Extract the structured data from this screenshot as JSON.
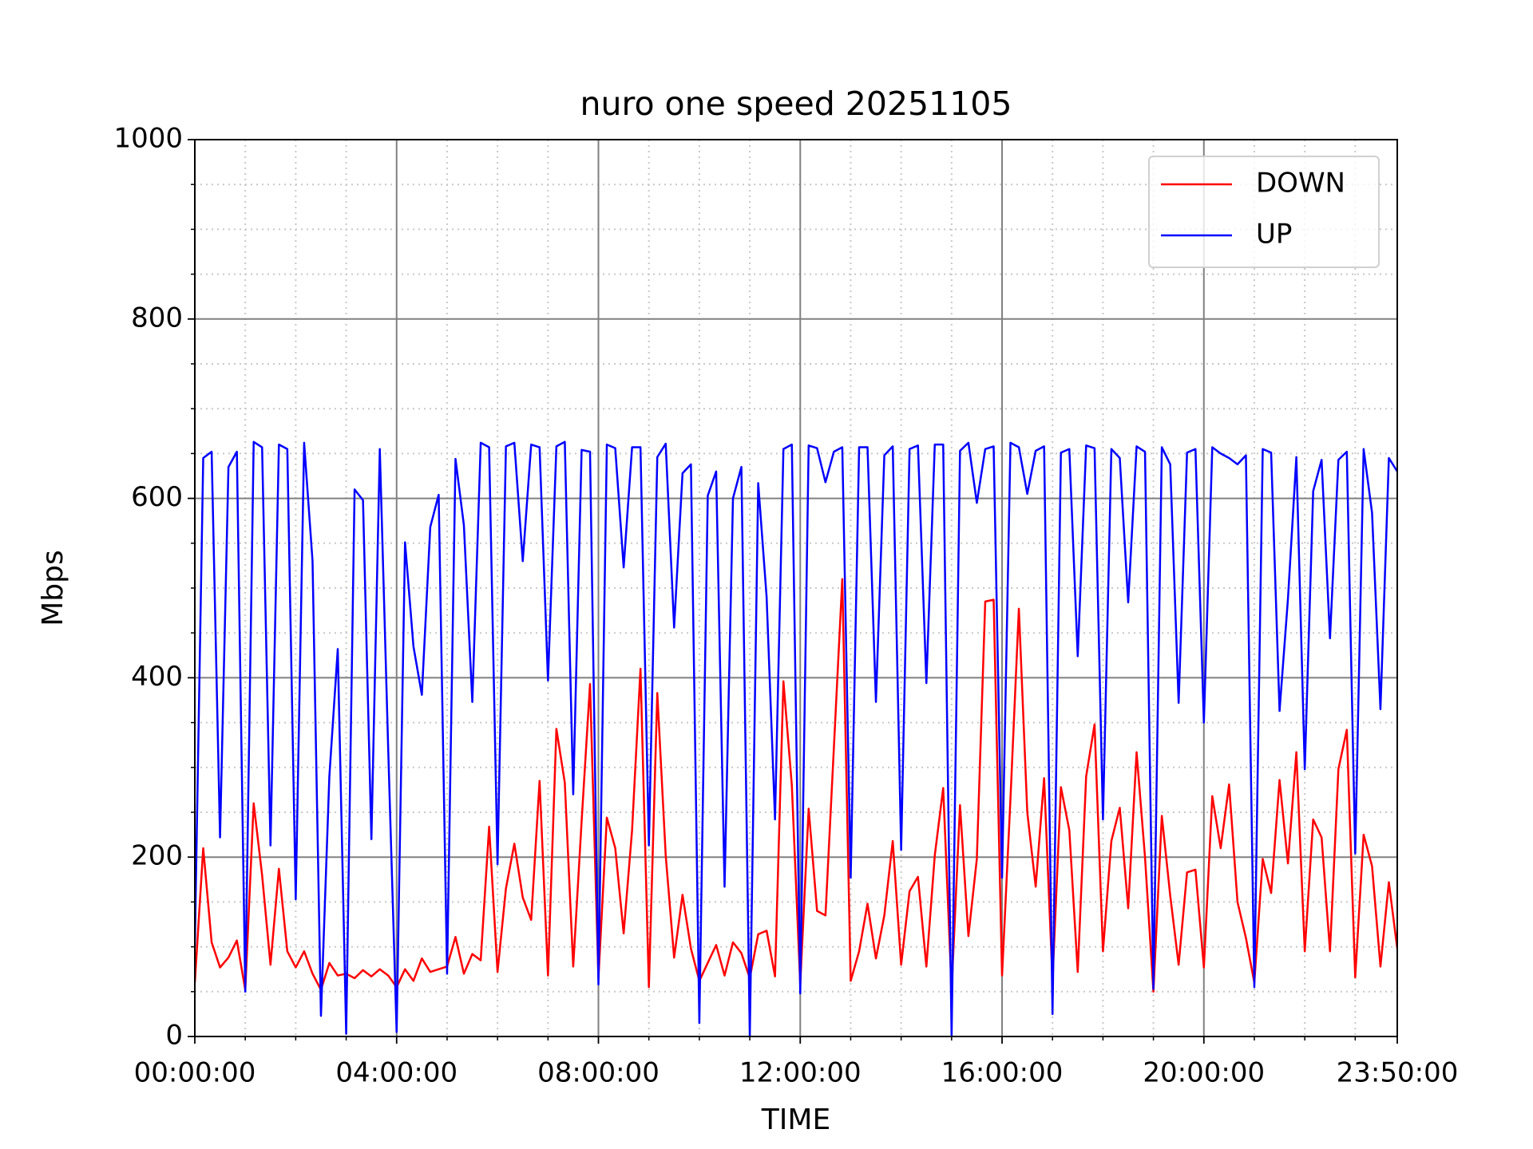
{
  "chart_data": {
    "type": "line",
    "title": "nuro one speed 20251105",
    "x_label": "TIME",
    "y_label": "Mbps",
    "x": [
      0,
      10,
      20,
      30,
      40,
      50,
      60,
      70,
      80,
      90,
      100,
      110,
      120,
      130,
      140,
      150,
      160,
      170,
      180,
      190,
      200,
      210,
      220,
      230,
      240,
      250,
      260,
      270,
      280,
      290,
      300,
      310,
      320,
      330,
      340,
      350,
      360,
      370,
      380,
      390,
      400,
      410,
      420,
      430,
      440,
      450,
      460,
      470,
      480,
      490,
      500,
      510,
      520,
      530,
      540,
      550,
      560,
      570,
      580,
      590,
      600,
      610,
      620,
      630,
      640,
      650,
      660,
      670,
      680,
      690,
      700,
      710,
      720,
      730,
      740,
      750,
      760,
      770,
      780,
      790,
      800,
      810,
      820,
      830,
      840,
      850,
      860,
      870,
      880,
      890,
      900,
      910,
      920,
      930,
      940,
      950,
      960,
      970,
      980,
      990,
      1000,
      1010,
      1020,
      1030,
      1040,
      1050,
      1060,
      1070,
      1080,
      1090,
      1100,
      1110,
      1120,
      1130,
      1140,
      1150,
      1160,
      1170,
      1180,
      1190,
      1200,
      1210,
      1220,
      1230,
      1240,
      1250,
      1260,
      1270,
      1280,
      1290,
      1300,
      1310,
      1320,
      1330,
      1340,
      1350,
      1360,
      1370,
      1380,
      1390,
      1400,
      1410,
      1420,
      1430
    ],
    "series": [
      {
        "name": "DOWN",
        "color": "#ff0000",
        "values": [
          60,
          210,
          105,
          77,
          88,
          107,
          52,
          260,
          180,
          80,
          187,
          95,
          77,
          95,
          70,
          52,
          82,
          68,
          70,
          65,
          74,
          67,
          75,
          68,
          55,
          75,
          62,
          87,
          72,
          75,
          78,
          111,
          70,
          92,
          85,
          234,
          72,
          165,
          215,
          155,
          130,
          285,
          68,
          343,
          283,
          78,
          240,
          393,
          65,
          244,
          210,
          115,
          230,
          410,
          55,
          383,
          202,
          88,
          158,
          98,
          62,
          82,
          102,
          68,
          105,
          93,
          65,
          114,
          118,
          67,
          396,
          280,
          58,
          254,
          140,
          135,
          322,
          510,
          62,
          95,
          148,
          87,
          135,
          218,
          80,
          162,
          178,
          78,
          202,
          277,
          52,
          258,
          112,
          198,
          485,
          487,
          68,
          265,
          477,
          250,
          167,
          288,
          62,
          278,
          230,
          72,
          290,
          348,
          95,
          218,
          255,
          143,
          317,
          200,
          50,
          246,
          157,
          80,
          183,
          186,
          77,
          268,
          210,
          281,
          150,
          110,
          60,
          198,
          160,
          286,
          193,
          317,
          95,
          242,
          222,
          95,
          298,
          342,
          66,
          225,
          190,
          78,
          172,
          98
        ]
      },
      {
        "name": "UP",
        "color": "#0000ff",
        "values": [
          100,
          645,
          652,
          222,
          635,
          652,
          50,
          663,
          657,
          213,
          660,
          655,
          153,
          662,
          530,
          23,
          290,
          432,
          3,
          610,
          598,
          220,
          655,
          320,
          5,
          551,
          435,
          381,
          568,
          604,
          70,
          644,
          570,
          373,
          662,
          657,
          192,
          658,
          662,
          530,
          660,
          657,
          397,
          658,
          663,
          270,
          654,
          652,
          58,
          660,
          656,
          523,
          657,
          657,
          213,
          646,
          661,
          456,
          628,
          638,
          15,
          603,
          630,
          167,
          600,
          635,
          0,
          617,
          490,
          242,
          655,
          660,
          48,
          659,
          656,
          618,
          652,
          657,
          177,
          657,
          657,
          373,
          648,
          658,
          208,
          655,
          659,
          394,
          660,
          660,
          0,
          653,
          662,
          595,
          655,
          658,
          177,
          662,
          657,
          605,
          653,
          658,
          25,
          651,
          655,
          424,
          659,
          656,
          242,
          655,
          645,
          484,
          658,
          652,
          53,
          657,
          638,
          372,
          651,
          655,
          350,
          657,
          650,
          645,
          638,
          648,
          55,
          655,
          651,
          363,
          488,
          646,
          298,
          608,
          643,
          444,
          643,
          652,
          204,
          655,
          584,
          365,
          645,
          630
        ]
      }
    ],
    "xlim": [
      0,
      1430
    ],
    "xticks": [
      {
        "value": 0,
        "label": "00:00:00"
      },
      {
        "value": 240,
        "label": "04:00:00"
      },
      {
        "value": 480,
        "label": "08:00:00"
      },
      {
        "value": 720,
        "label": "12:00:00"
      },
      {
        "value": 960,
        "label": "16:00:00"
      },
      {
        "value": 1200,
        "label": "20:00:00"
      },
      {
        "value": 1430,
        "label": "23:50:00"
      }
    ],
    "ylim": [
      0,
      1000
    ],
    "yticks": [
      0,
      200,
      400,
      600,
      800,
      1000
    ],
    "grid": true,
    "minor_grid": true,
    "legend": "upper right"
  }
}
